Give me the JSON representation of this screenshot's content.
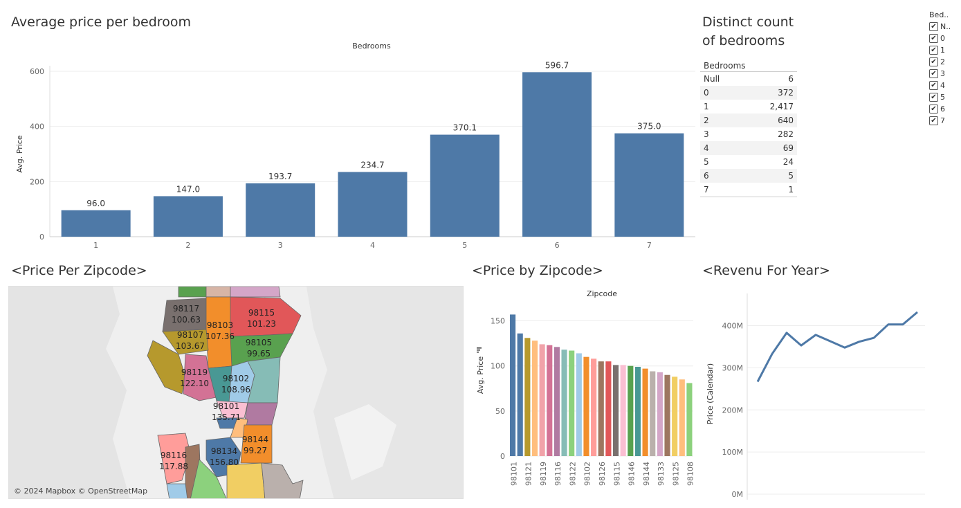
{
  "bar_title": "Average price per bedroom",
  "bar_chart": {
    "top_label": "Bedrooms",
    "ylabel": "Avg. Price",
    "yticks": [
      "0",
      "200",
      "400",
      "600"
    ],
    "categories": [
      "1",
      "2",
      "3",
      "4",
      "5",
      "6",
      "7"
    ],
    "values": [
      96.0,
      147.0,
      193.7,
      234.7,
      370.1,
      596.7,
      375.0
    ],
    "value_labels": [
      "96.0",
      "147.0",
      "193.7",
      "234.7",
      "370.1",
      "596.7",
      "375.0"
    ],
    "color": "#4e79a7"
  },
  "distinct_title_line1": "Distinct count",
  "distinct_title_line2": "of bedrooms",
  "distinct_table": {
    "header": "Bedrooms",
    "rows": [
      {
        "key": "Null",
        "value": "6"
      },
      {
        "key": "0",
        "value": "372"
      },
      {
        "key": "1",
        "value": "2,417"
      },
      {
        "key": "2",
        "value": "640"
      },
      {
        "key": "3",
        "value": "282"
      },
      {
        "key": "4",
        "value": "69"
      },
      {
        "key": "5",
        "value": "24"
      },
      {
        "key": "6",
        "value": "5"
      },
      {
        "key": "7",
        "value": "1"
      }
    ]
  },
  "filter": {
    "title": "Bed..",
    "items": [
      "N..",
      "0",
      "1",
      "2",
      "3",
      "4",
      "5",
      "6",
      "7"
    ],
    "check_icon": "check-icon"
  },
  "map_title": "<Price Per Zipcode>",
  "map": {
    "attribution": "© 2024 Mapbox © OpenStreetMap",
    "labels": [
      {
        "zip": "98117",
        "price": "100.63"
      },
      {
        "zip": "98103",
        "price": "107.36"
      },
      {
        "zip": "98115",
        "price": "101.23"
      },
      {
        "zip": "98107",
        "price": "103.67"
      },
      {
        "zip": "98105",
        "price": "99.65"
      },
      {
        "zip": "98119",
        "price": "122.10"
      },
      {
        "zip": "98102",
        "price": "108.96"
      },
      {
        "zip": "98101",
        "price": "135.71"
      },
      {
        "zip": "98144",
        "price": "99.27"
      },
      {
        "zip": "98116",
        "price": "117.88"
      },
      {
        "zip": "98134",
        "price": "156.80"
      }
    ]
  },
  "zip_title": "<Price by Zipcode>",
  "zip_chart": {
    "top_label": "Zipcode",
    "ylabel": "Avg. Price",
    "sort_icon": "sort-descending-icon",
    "yticks": [
      "0",
      "50",
      "100",
      "150"
    ],
    "tick_labels": [
      "98101",
      "98121",
      "98119",
      "98116",
      "98122",
      "98102",
      "98126",
      "98115",
      "98146",
      "98144",
      "98133",
      "98125",
      "98108"
    ],
    "values": [
      157,
      136,
      131,
      128,
      124,
      123,
      121,
      118,
      117,
      114,
      110,
      108,
      105,
      105,
      101,
      101,
      100,
      99,
      97,
      94,
      93,
      90,
      88,
      85,
      81
    ],
    "colors": [
      "#4e79a7",
      "#4e79a7",
      "#b6992d",
      "#ffbe7d",
      "#f1a2a9",
      "#d37295",
      "#b07aa1",
      "#86bcb6",
      "#8cd17d",
      "#a0cbe8",
      "#f28e2b",
      "#ff9d9a",
      "#9d7660",
      "#e15759",
      "#79706e",
      "#fabfd2",
      "#59a14f",
      "#499894",
      "#f28e2b",
      "#bab0ac",
      "#d4a6c8",
      "#9d7660",
      "#f1ce63",
      "#ffbe7d",
      "#8cd17d"
    ]
  },
  "rev_title": "<Revenu For Year>",
  "rev_chart": {
    "ylabel": "Price (Calendar)",
    "yticks": [
      "0M",
      "100M",
      "200M",
      "300M",
      "400M"
    ],
    "values": [
      267,
      333,
      383,
      353,
      378,
      363,
      348,
      362,
      371,
      403,
      403,
      432
    ],
    "color": "#4e79a7"
  }
}
